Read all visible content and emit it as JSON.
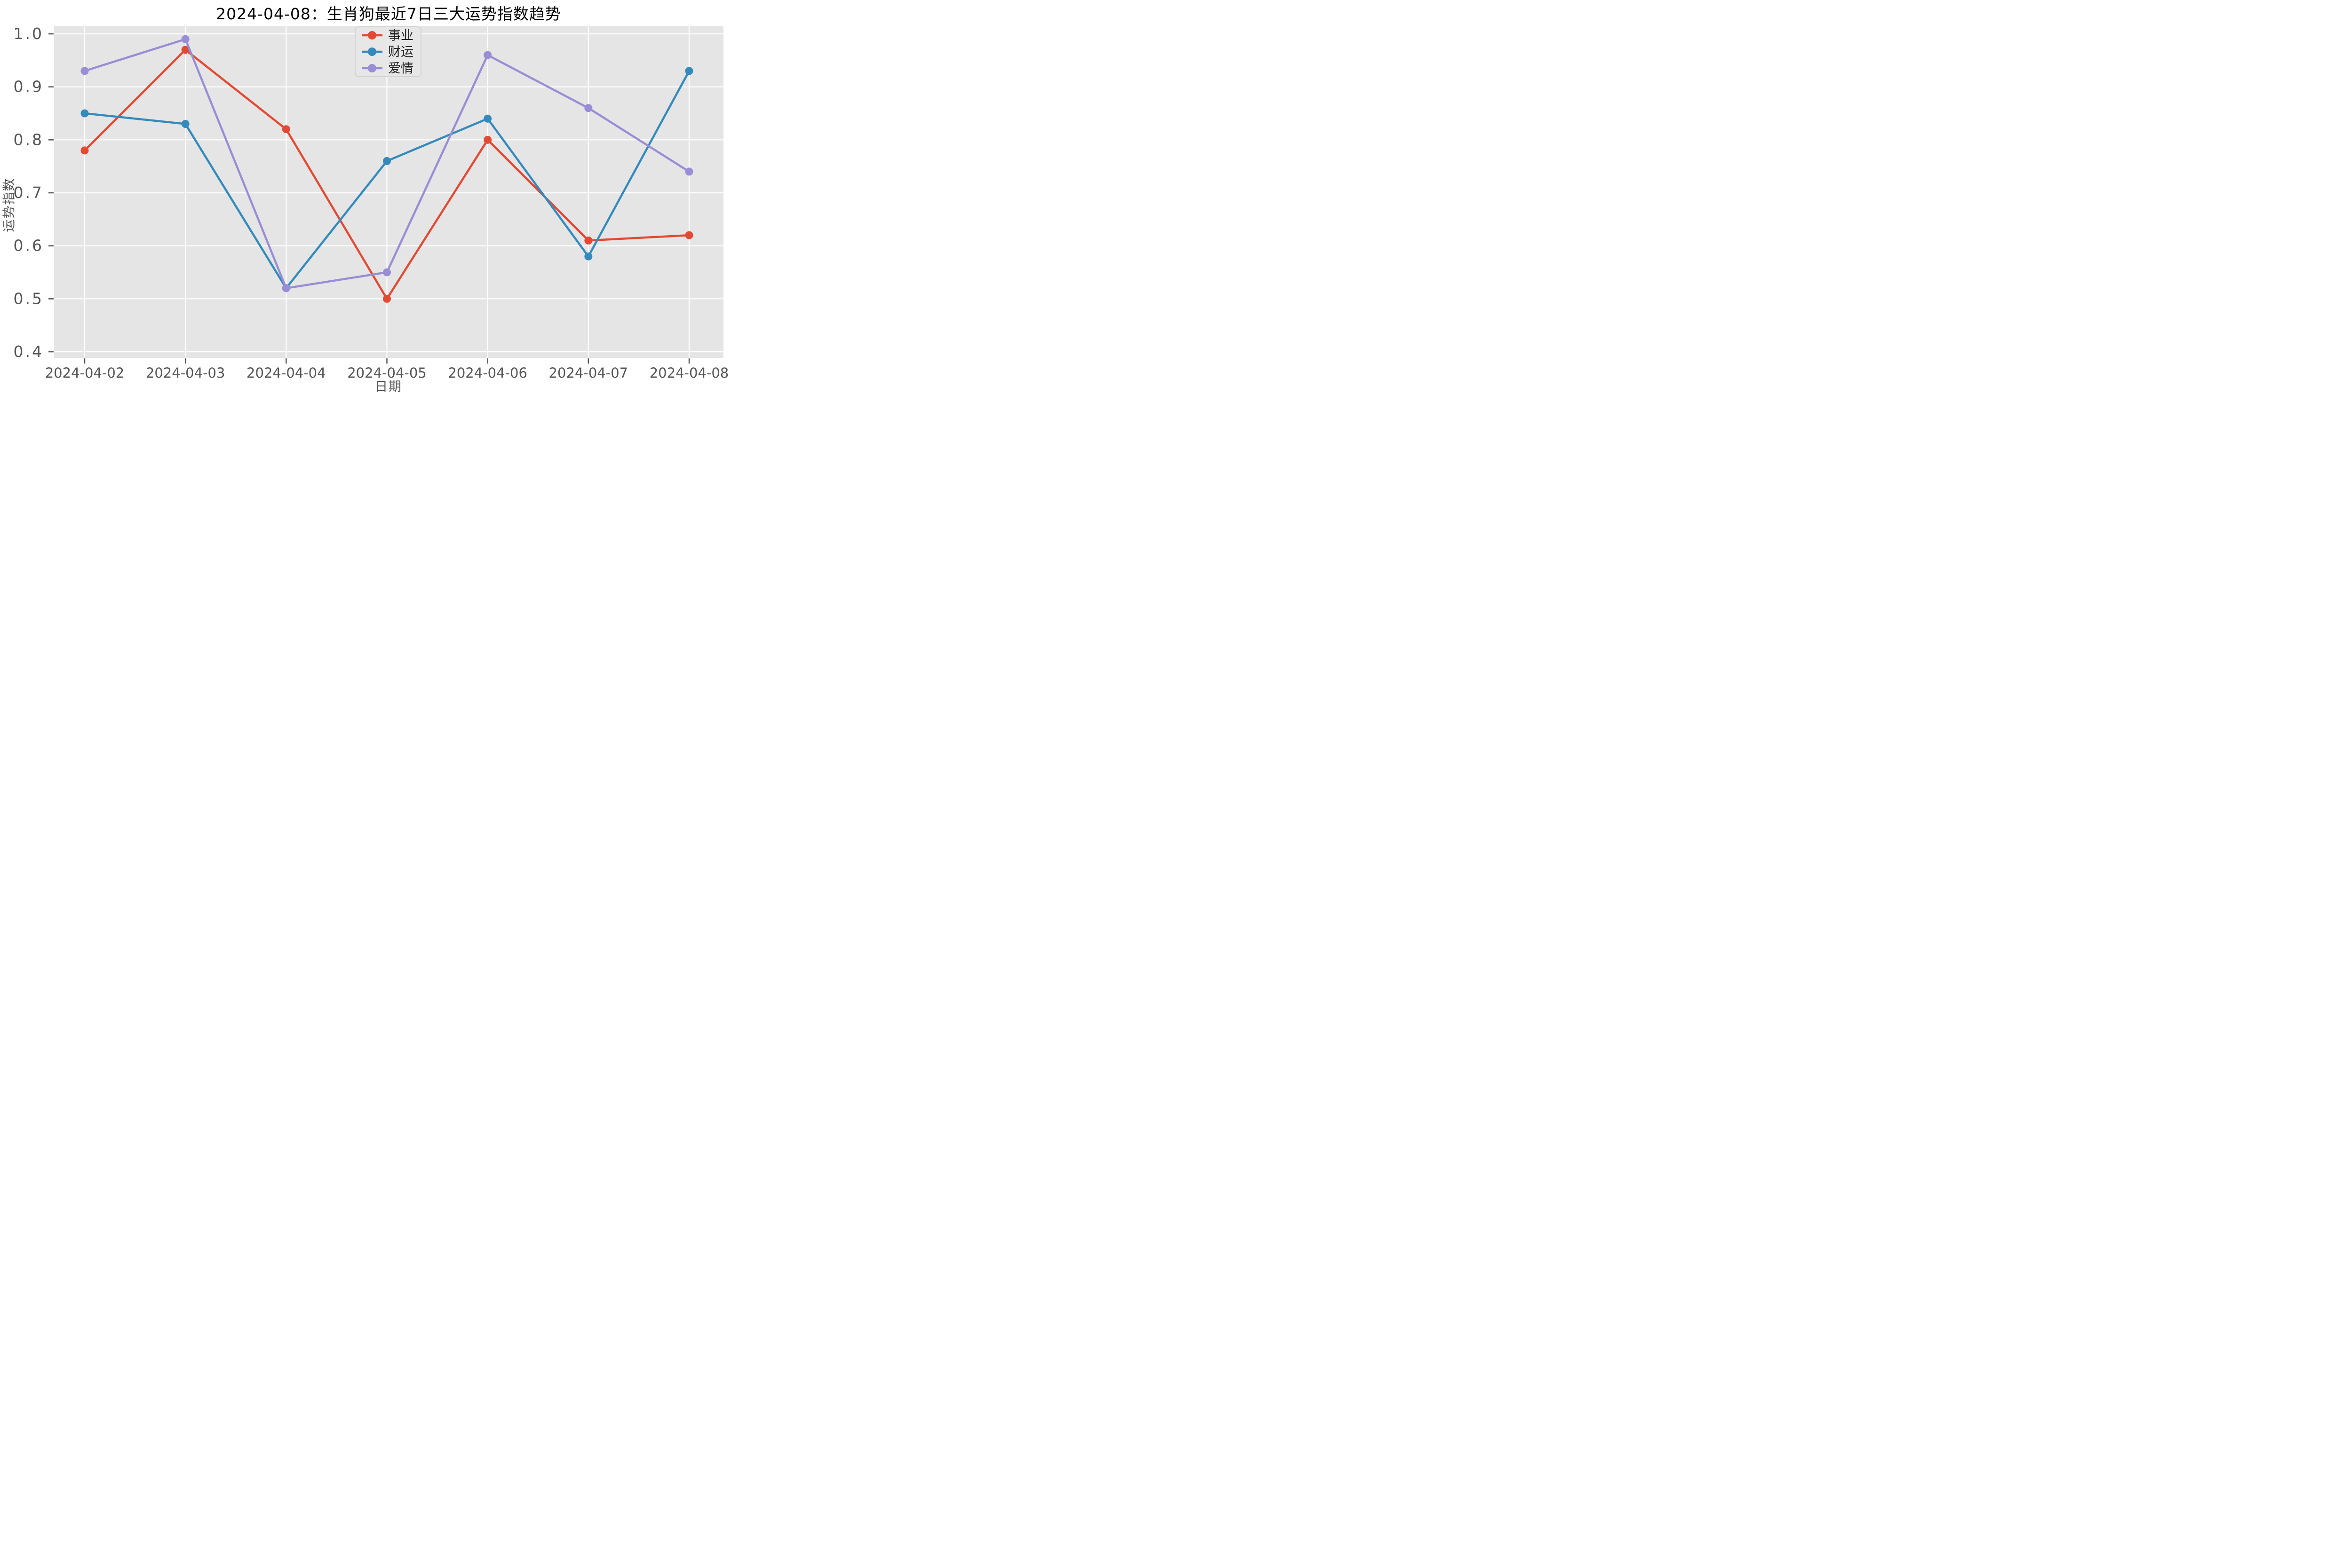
{
  "chart_data": {
    "type": "line",
    "title": "2024-04-08：生肖狗最近7日三大运势指数趋势",
    "xlabel": "日期",
    "ylabel": "运势指数",
    "x": [
      "2024-04-02",
      "2024-04-03",
      "2024-04-04",
      "2024-04-05",
      "2024-04-06",
      "2024-04-07",
      "2024-04-08"
    ],
    "series": [
      {
        "name": "事业",
        "color": "#e24a33",
        "values": [
          0.78,
          0.97,
          0.82,
          0.5,
          0.8,
          0.61,
          0.62
        ]
      },
      {
        "name": "财运",
        "color": "#348abd",
        "values": [
          0.85,
          0.83,
          0.52,
          0.76,
          0.84,
          0.58,
          0.93
        ]
      },
      {
        "name": "爱情",
        "color": "#988ed5",
        "values": [
          0.93,
          0.99,
          0.52,
          0.55,
          0.96,
          0.86,
          0.74
        ]
      }
    ],
    "ylim": [
      0.4,
      1.0
    ],
    "yticks": [
      0.4,
      0.5,
      0.6,
      0.7,
      0.8,
      0.9,
      1.0
    ],
    "grid": true,
    "legend_position": "upper center",
    "styles": {
      "figure_background": "#ffffff",
      "plot_background": "#e5e5e5",
      "grid_color": "#ffffff",
      "tick_color": "#555555",
      "tick_label_color": "#555555",
      "title_color": "#000000",
      "legend_background": "#e7e7e7",
      "legend_border": "#cccccc"
    }
  }
}
